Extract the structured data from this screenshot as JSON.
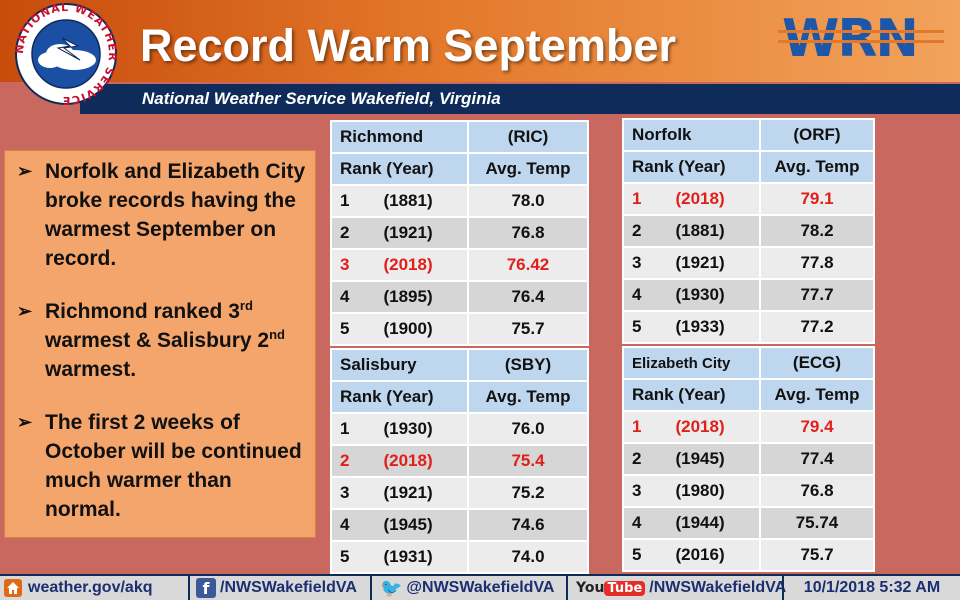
{
  "header": {
    "title": "Record Warm September",
    "subtitle": "National Weather Service Wakefield, Virginia",
    "logo_text": "NATIONAL WEATHER SERVICE",
    "wrn_logo_text": "WRN"
  },
  "summary": {
    "bullet1": "Norfolk and Elizabeth City broke records having the warmest September on record.",
    "bullet2_a": "Richmond ranked 3",
    "bullet2_sup1": "rd",
    "bullet2_b": " warmest & Salisbury 2",
    "bullet2_sup2": "nd",
    "bullet2_c": " warmest.",
    "bullet3": "The first 2 weeks of October will be continued much warmer than normal."
  },
  "tables": {
    "richmond": {
      "city": "Richmond",
      "code": "(RIC)",
      "col1": "Rank (Year)",
      "col2": "Avg. Temp",
      "rows": [
        {
          "rank": "1",
          "year": "(1881)",
          "temp": "78.0"
        },
        {
          "rank": "2",
          "year": "(1921)",
          "temp": "76.8"
        },
        {
          "rank": "3",
          "year": "(2018)",
          "temp": "76.42"
        },
        {
          "rank": "4",
          "year": "(1895)",
          "temp": "76.4"
        },
        {
          "rank": "5",
          "year": "(1900)",
          "temp": "75.7"
        }
      ]
    },
    "norfolk": {
      "city": "Norfolk",
      "code": "(ORF)",
      "col1": "Rank (Year)",
      "col2": "Avg. Temp",
      "rows": [
        {
          "rank": "1",
          "year": "(2018)",
          "temp": "79.1"
        },
        {
          "rank": "2",
          "year": "(1881)",
          "temp": "78.2"
        },
        {
          "rank": "3",
          "year": "(1921)",
          "temp": "77.8"
        },
        {
          "rank": "4",
          "year": "(1930)",
          "temp": "77.7"
        },
        {
          "rank": "5",
          "year": "(1933)",
          "temp": "77.2"
        }
      ]
    },
    "salisbury": {
      "city": "Salisbury",
      "code": "(SBY)",
      "col1": "Rank (Year)",
      "col2": "Avg. Temp",
      "rows": [
        {
          "rank": "1",
          "year": "(1930)",
          "temp": "76.0"
        },
        {
          "rank": "2",
          "year": "(2018)",
          "temp": "75.4"
        },
        {
          "rank": "3",
          "year": "(1921)",
          "temp": "75.2"
        },
        {
          "rank": "4",
          "year": "(1945)",
          "temp": "74.6"
        },
        {
          "rank": "5",
          "year": "(1931)",
          "temp": "74.0"
        }
      ]
    },
    "ecity": {
      "city": "Elizabeth City",
      "code": "(ECG)",
      "col1": "Rank (Year)",
      "col2": "Avg. Temp",
      "rows": [
        {
          "rank": "1",
          "year": "(2018)",
          "temp": "79.4"
        },
        {
          "rank": "2",
          "year": "(1945)",
          "temp": "77.4"
        },
        {
          "rank": "3",
          "year": "(1980)",
          "temp": "76.8"
        },
        {
          "rank": "4",
          "year": "(1944)",
          "temp": "75.74"
        },
        {
          "rank": "5",
          "year": "(2016)",
          "temp": "75.7"
        }
      ]
    }
  },
  "footer": {
    "website": "weather.gov/akq",
    "facebook": "/NWSWakefieldVA",
    "twitter": "@NWSWakefieldVA",
    "youtube_you": "You",
    "youtube_tube": "Tube",
    "youtube": "/NWSWakefieldVA",
    "timestamp": "10/1/2018 5:32 AM"
  },
  "colors": {
    "background": "#c9685f",
    "record_highlight": "#e0201b",
    "table_header": "#bfd7ee",
    "navy": "#0f2b5a",
    "text_box": "#f4a56b"
  },
  "icons": [
    "nws-logo",
    "wrn-logo",
    "home-icon",
    "facebook-icon",
    "twitter-icon",
    "youtube-icon",
    "arrow-bullet-icon"
  ]
}
